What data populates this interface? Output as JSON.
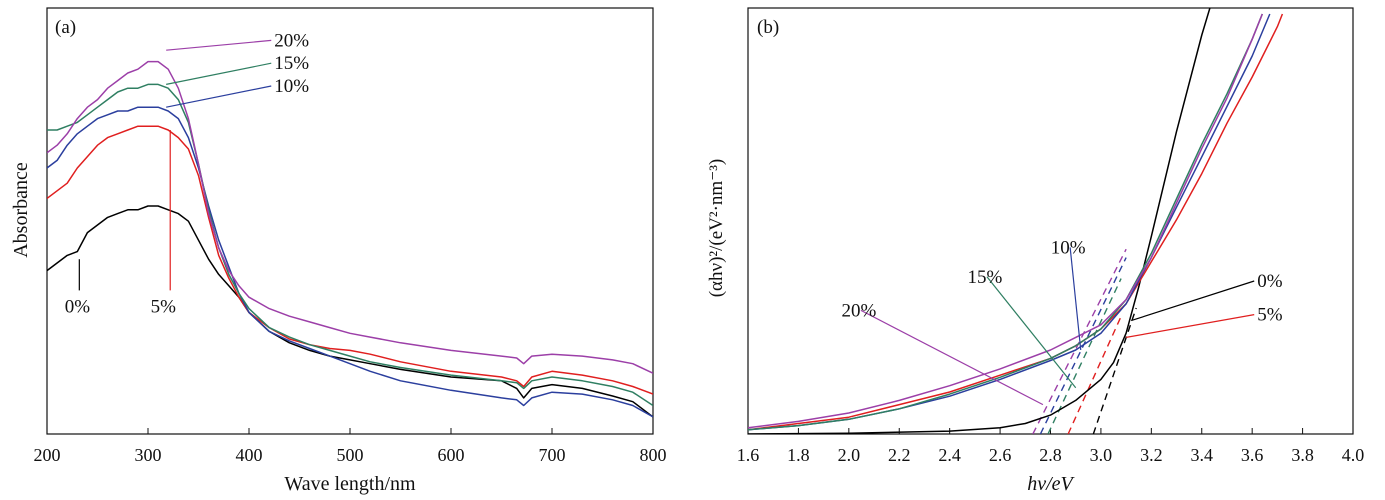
{
  "chart_data": [
    {
      "panel": "(a)",
      "type": "line",
      "xlabel": "Wave length/nm",
      "ylabel": "Absorbance",
      "xlim": [
        200,
        800
      ],
      "ylim": [
        0,
        1
      ],
      "y_units": "arbitrary (no y tick labels shown)",
      "xticks": [
        200,
        300,
        400,
        500,
        600,
        700,
        800
      ],
      "xtick_labels": [
        "200",
        "300",
        "400",
        "500",
        "600",
        "700",
        "800"
      ],
      "series": [
        {
          "name": "0%",
          "color": "#000000",
          "x": [
            200,
            210,
            220,
            230,
            240,
            250,
            260,
            270,
            280,
            290,
            300,
            310,
            320,
            330,
            340,
            350,
            360,
            370,
            380,
            390,
            400,
            420,
            440,
            460,
            480,
            500,
            520,
            550,
            600,
            650,
            665,
            672,
            680,
            700,
            730,
            760,
            780,
            800
          ],
          "y": [
            0.43,
            0.45,
            0.47,
            0.48,
            0.53,
            0.55,
            0.57,
            0.58,
            0.59,
            0.59,
            0.6,
            0.6,
            0.59,
            0.58,
            0.56,
            0.51,
            0.46,
            0.42,
            0.39,
            0.36,
            0.32,
            0.27,
            0.24,
            0.22,
            0.205,
            0.195,
            0.185,
            0.17,
            0.15,
            0.14,
            0.12,
            0.095,
            0.12,
            0.13,
            0.12,
            0.1,
            0.085,
            0.045
          ]
        },
        {
          "name": "5%",
          "color": "#e01f1f",
          "x": [
            200,
            210,
            220,
            230,
            240,
            250,
            260,
            270,
            280,
            290,
            300,
            310,
            320,
            330,
            340,
            350,
            360,
            370,
            380,
            390,
            400,
            420,
            440,
            460,
            480,
            500,
            520,
            550,
            600,
            650,
            665,
            672,
            680,
            700,
            730,
            760,
            780,
            800
          ],
          "y": [
            0.62,
            0.64,
            0.66,
            0.7,
            0.73,
            0.76,
            0.78,
            0.79,
            0.8,
            0.81,
            0.81,
            0.81,
            0.8,
            0.78,
            0.75,
            0.68,
            0.57,
            0.47,
            0.41,
            0.36,
            0.32,
            0.28,
            0.25,
            0.235,
            0.225,
            0.22,
            0.21,
            0.19,
            0.165,
            0.15,
            0.14,
            0.125,
            0.15,
            0.165,
            0.155,
            0.14,
            0.125,
            0.105
          ]
        },
        {
          "name": "10%",
          "color": "#2b3f9e",
          "x": [
            200,
            210,
            220,
            230,
            240,
            250,
            260,
            270,
            280,
            290,
            300,
            310,
            320,
            330,
            340,
            350,
            360,
            370,
            380,
            390,
            400,
            420,
            440,
            460,
            480,
            500,
            520,
            550,
            600,
            650,
            665,
            672,
            680,
            700,
            730,
            760,
            780,
            800
          ],
          "y": [
            0.7,
            0.72,
            0.76,
            0.79,
            0.81,
            0.83,
            0.84,
            0.85,
            0.85,
            0.86,
            0.86,
            0.86,
            0.85,
            0.83,
            0.78,
            0.7,
            0.6,
            0.51,
            0.44,
            0.37,
            0.32,
            0.27,
            0.245,
            0.225,
            0.205,
            0.185,
            0.165,
            0.14,
            0.115,
            0.095,
            0.09,
            0.075,
            0.095,
            0.11,
            0.105,
            0.09,
            0.075,
            0.045
          ]
        },
        {
          "name": "15%",
          "color": "#2f7f62",
          "x": [
            200,
            210,
            220,
            230,
            240,
            250,
            260,
            270,
            280,
            290,
            300,
            310,
            320,
            330,
            340,
            350,
            360,
            370,
            380,
            390,
            400,
            420,
            440,
            460,
            480,
            500,
            520,
            550,
            600,
            650,
            665,
            672,
            680,
            700,
            730,
            760,
            780,
            800
          ],
          "y": [
            0.8,
            0.8,
            0.81,
            0.82,
            0.84,
            0.86,
            0.88,
            0.9,
            0.91,
            0.91,
            0.92,
            0.92,
            0.91,
            0.88,
            0.82,
            0.71,
            0.59,
            0.49,
            0.42,
            0.37,
            0.33,
            0.28,
            0.255,
            0.235,
            0.22,
            0.205,
            0.19,
            0.175,
            0.155,
            0.14,
            0.135,
            0.12,
            0.14,
            0.15,
            0.14,
            0.125,
            0.11,
            0.075
          ]
        },
        {
          "name": "20%",
          "color": "#9c3fa8",
          "x": [
            200,
            210,
            220,
            230,
            240,
            250,
            260,
            270,
            280,
            290,
            300,
            310,
            320,
            330,
            340,
            350,
            360,
            370,
            380,
            390,
            400,
            420,
            440,
            460,
            480,
            500,
            520,
            550,
            600,
            650,
            665,
            672,
            680,
            700,
            730,
            760,
            780,
            800
          ],
          "y": [
            0.74,
            0.76,
            0.79,
            0.83,
            0.86,
            0.88,
            0.91,
            0.93,
            0.95,
            0.96,
            0.98,
            0.98,
            0.96,
            0.91,
            0.83,
            0.71,
            0.58,
            0.49,
            0.43,
            0.39,
            0.36,
            0.33,
            0.31,
            0.295,
            0.28,
            0.265,
            0.255,
            0.24,
            0.22,
            0.205,
            0.2,
            0.185,
            0.205,
            0.21,
            0.205,
            0.195,
            0.185,
            0.16
          ]
        }
      ],
      "annotations": [
        {
          "text": "0%",
          "series": "0%",
          "label_pos": [
            240,
            0.32
          ],
          "target": [
            232,
            0.46
          ]
        },
        {
          "text": "5%",
          "series": "5%",
          "label_pos": [
            325,
            0.32
          ],
          "target": [
            322,
            0.8
          ]
        },
        {
          "text": "10%",
          "series": "10%",
          "label_pos": [
            425,
            0.9
          ],
          "target": [
            318,
            0.86
          ]
        },
        {
          "text": "15%",
          "series": "15%",
          "label_pos": [
            425,
            0.96
          ],
          "target": [
            318,
            0.92
          ]
        },
        {
          "text": "20%",
          "series": "20%",
          "label_pos": [
            425,
            1.02
          ],
          "target": [
            318,
            1.01
          ]
        }
      ]
    },
    {
      "panel": "(b)",
      "type": "line",
      "xlabel": "hν/eV",
      "ylabel": "(αhν)²/(eV²·nm⁻³)",
      "xlim": [
        1.6,
        4.0
      ],
      "ylim": [
        0,
        1
      ],
      "y_units": "arbitrary (no y tick labels shown)",
      "xticks": [
        1.6,
        1.8,
        2.0,
        2.2,
        2.4,
        2.6,
        2.8,
        3.0,
        3.2,
        3.4,
        3.6,
        3.8,
        4.0
      ],
      "xtick_labels": [
        "1.6",
        "1.8",
        "2.0",
        "2.2",
        "2.4",
        "2.6",
        "2.8",
        "3.0",
        "3.2",
        "3.4",
        "3.6",
        "3.8",
        "4.0"
      ],
      "series": [
        {
          "name": "0%",
          "color": "#000000",
          "x": [
            1.6,
            2.0,
            2.4,
            2.6,
            2.7,
            2.8,
            2.9,
            3.0,
            3.05,
            3.1,
            3.15,
            3.2,
            3.3,
            3.4,
            3.45
          ],
          "y": [
            0.0,
            0.002,
            0.007,
            0.015,
            0.025,
            0.045,
            0.08,
            0.13,
            0.17,
            0.24,
            0.35,
            0.47,
            0.72,
            0.95,
            1.05
          ]
        },
        {
          "name": "5%",
          "color": "#e01f1f",
          "x": [
            1.6,
            1.8,
            2.0,
            2.2,
            2.4,
            2.6,
            2.8,
            2.9,
            3.0,
            3.1,
            3.2,
            3.3,
            3.4,
            3.5,
            3.6,
            3.7,
            3.72
          ],
          "y": [
            0.01,
            0.025,
            0.04,
            0.07,
            0.1,
            0.14,
            0.18,
            0.21,
            0.25,
            0.31,
            0.41,
            0.51,
            0.62,
            0.74,
            0.85,
            0.97,
            1.0
          ]
        },
        {
          "name": "10%",
          "color": "#2b3f9e",
          "x": [
            1.6,
            1.8,
            2.0,
            2.2,
            2.4,
            2.6,
            2.8,
            2.9,
            3.0,
            3.1,
            3.2,
            3.3,
            3.4,
            3.5,
            3.6,
            3.67
          ],
          "y": [
            0.01,
            0.02,
            0.035,
            0.06,
            0.09,
            0.13,
            0.175,
            0.2,
            0.24,
            0.31,
            0.42,
            0.54,
            0.66,
            0.78,
            0.9,
            1.0
          ]
        },
        {
          "name": "15%",
          "color": "#2f7f62",
          "x": [
            1.6,
            1.8,
            2.0,
            2.2,
            2.4,
            2.6,
            2.8,
            2.9,
            3.0,
            3.1,
            3.2,
            3.3,
            3.4,
            3.5,
            3.6,
            3.64
          ],
          "y": [
            0.01,
            0.02,
            0.035,
            0.06,
            0.095,
            0.135,
            0.18,
            0.21,
            0.25,
            0.32,
            0.43,
            0.56,
            0.69,
            0.81,
            0.94,
            1.0
          ]
        },
        {
          "name": "20%",
          "color": "#9c3fa8",
          "x": [
            1.6,
            1.8,
            2.0,
            2.2,
            2.4,
            2.6,
            2.8,
            2.9,
            3.0,
            3.1,
            3.2,
            3.3,
            3.4,
            3.5,
            3.6,
            3.64
          ],
          "y": [
            0.015,
            0.03,
            0.05,
            0.08,
            0.115,
            0.155,
            0.2,
            0.23,
            0.26,
            0.32,
            0.42,
            0.55,
            0.68,
            0.8,
            0.94,
            1.0
          ]
        }
      ],
      "tangent_lines": [
        {
          "series": "0%",
          "x": [
            2.97,
            3.14
          ],
          "y": [
            0.0,
            0.3
          ]
        },
        {
          "series": "5%",
          "x": [
            2.87,
            3.08
          ],
          "y": [
            0.0,
            0.28
          ]
        },
        {
          "series": "10%",
          "x": [
            2.76,
            3.1
          ],
          "y": [
            0.0,
            0.42
          ]
        },
        {
          "series": "15%",
          "x": [
            2.79,
            3.08
          ],
          "y": [
            0.0,
            0.37
          ]
        },
        {
          "series": "20%",
          "x": [
            2.73,
            3.1
          ],
          "y": [
            0.0,
            0.44
          ]
        }
      ],
      "annotations": [
        {
          "text": "0%",
          "series": "0%",
          "label_pos": [
            3.62,
            0.35
          ],
          "target": [
            3.12,
            0.27
          ]
        },
        {
          "text": "5%",
          "series": "5%",
          "label_pos": [
            3.62,
            0.27
          ],
          "target": [
            3.1,
            0.23
          ]
        },
        {
          "text": "10%",
          "series": "10%",
          "label_pos": [
            2.87,
            0.43
          ],
          "target": [
            2.92,
            0.2
          ]
        },
        {
          "text": "15%",
          "series": "15%",
          "label_pos": [
            2.54,
            0.36
          ],
          "target": [
            2.9,
            0.11
          ]
        },
        {
          "text": "20%",
          "series": "20%",
          "label_pos": [
            2.04,
            0.28
          ],
          "target": [
            2.77,
            0.07
          ]
        }
      ]
    }
  ]
}
